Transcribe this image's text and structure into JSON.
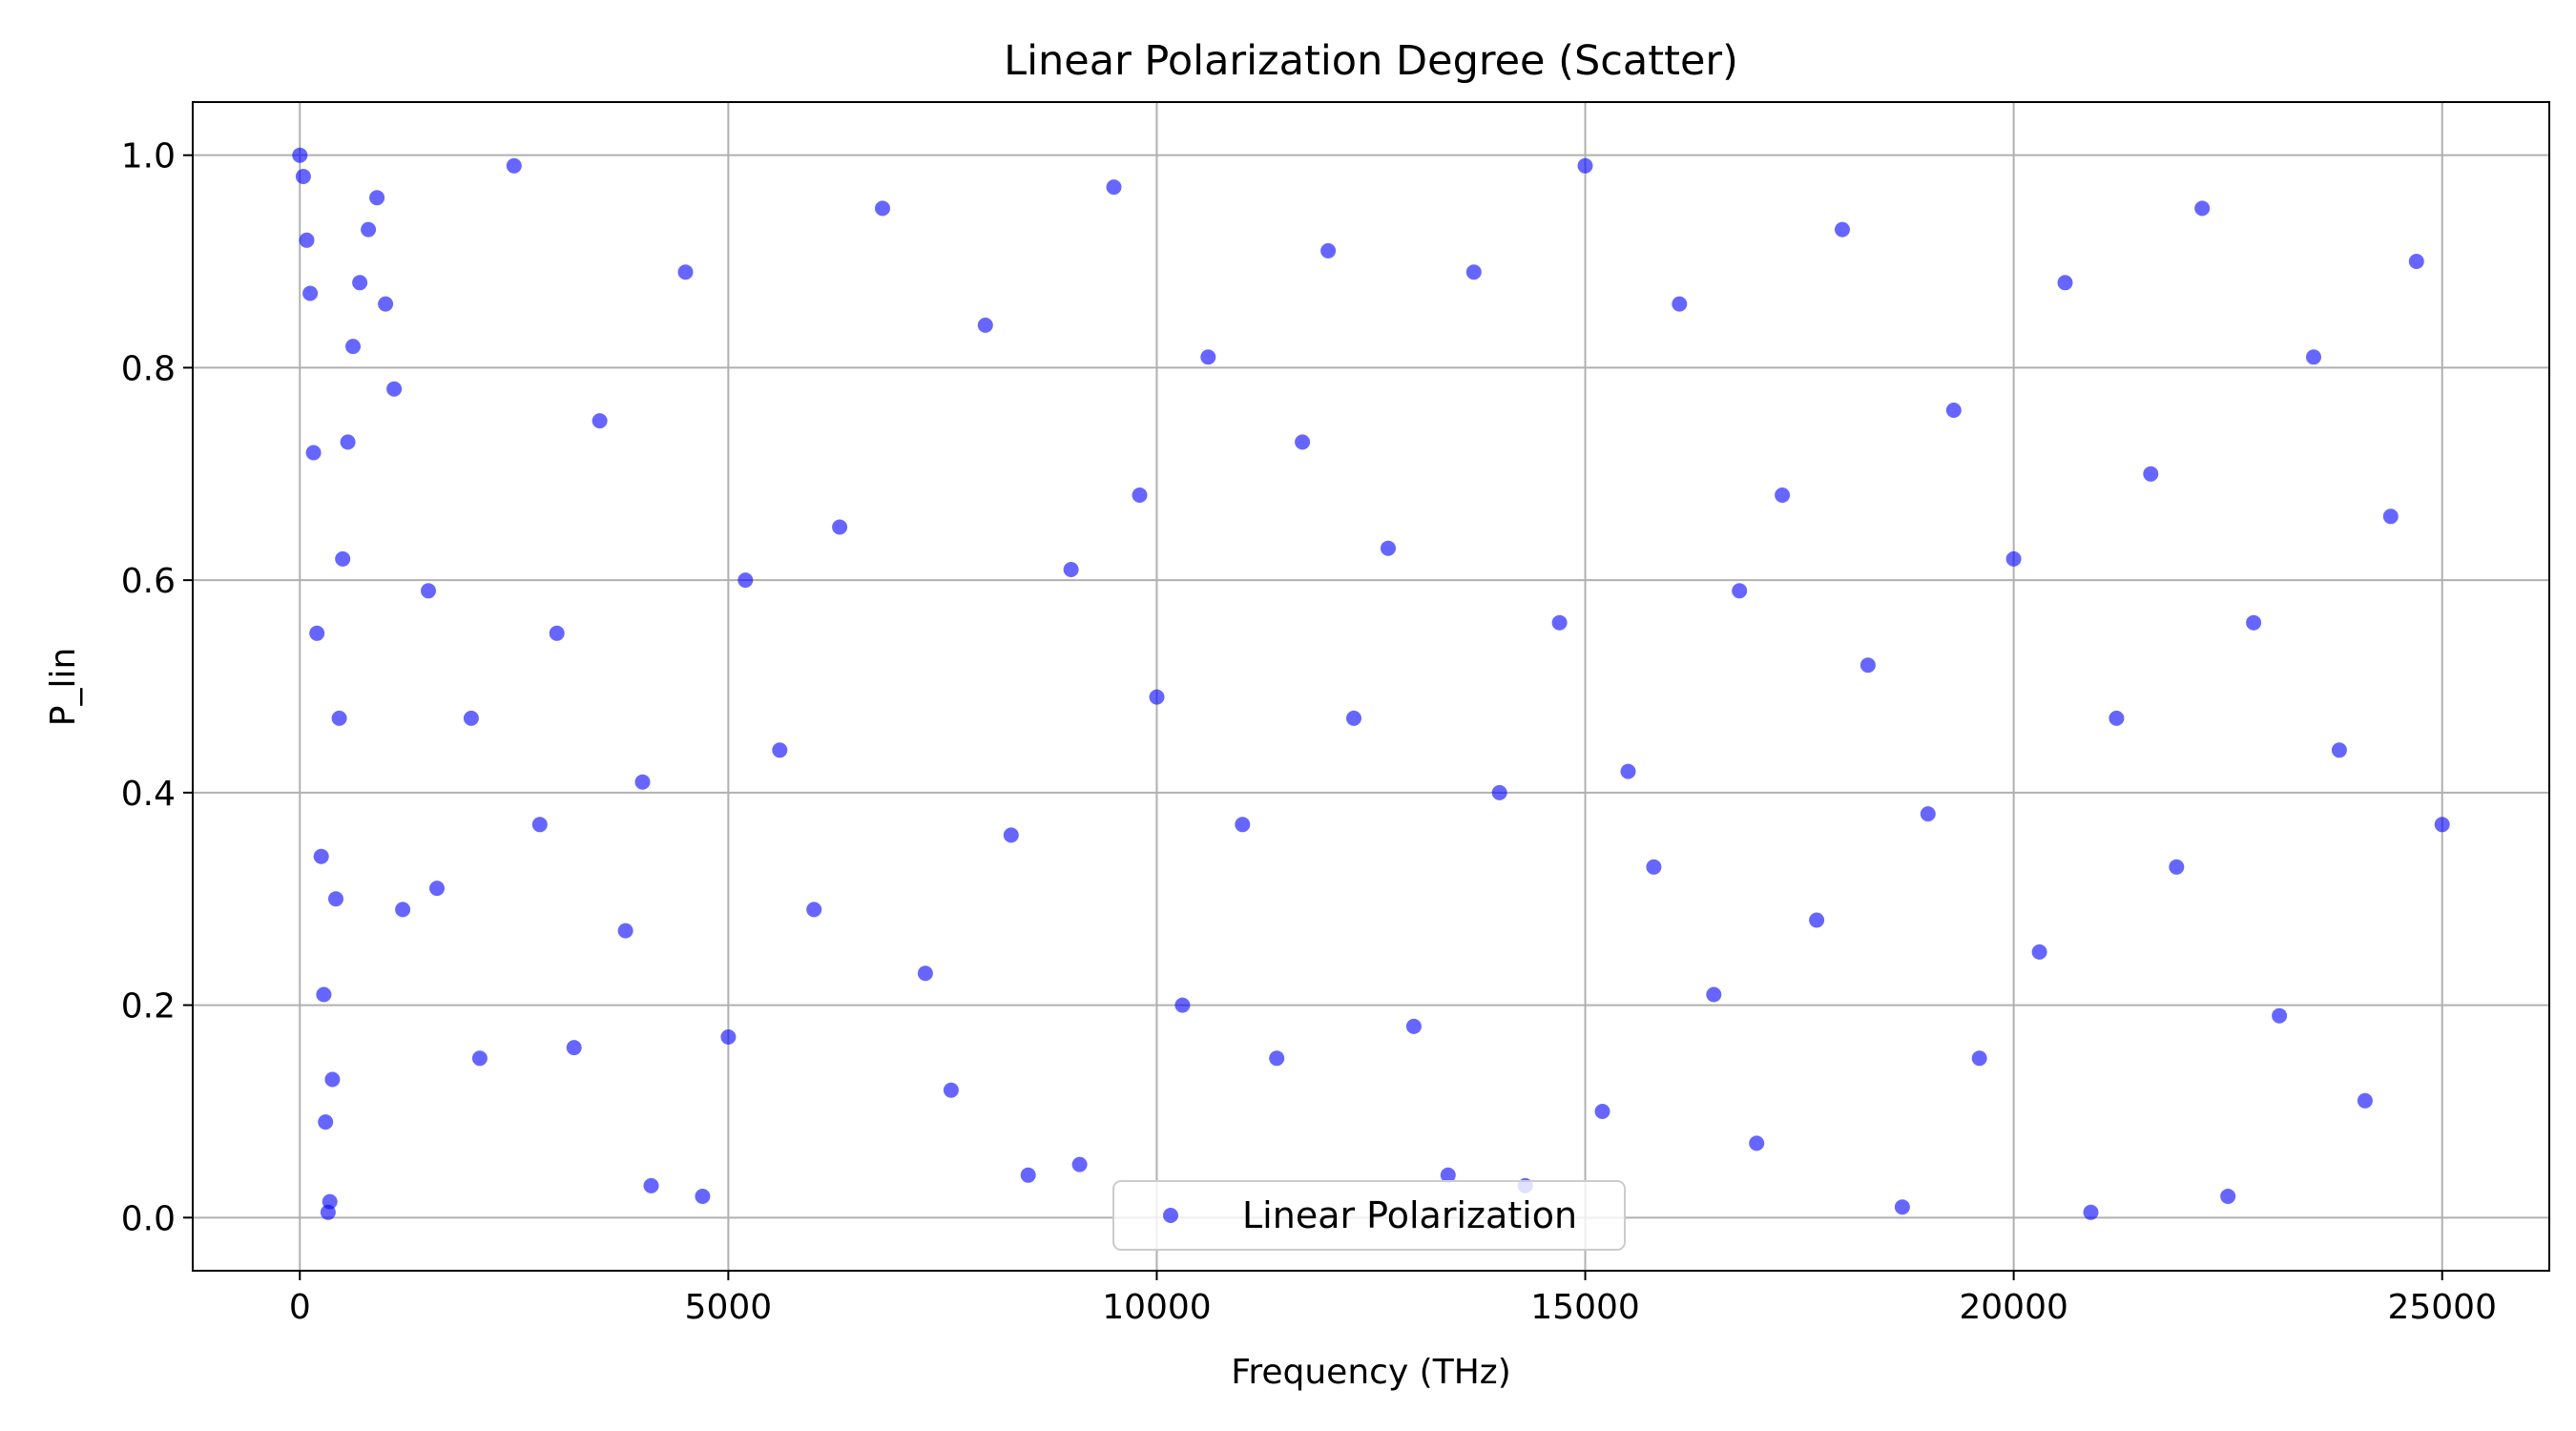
{
  "chart_data": {
    "type": "scatter",
    "title": "Linear Polarization Degree (Scatter)",
    "xlabel": "Frequency (THz)",
    "ylabel": "P_lin",
    "xlim": [
      -1250,
      26250
    ],
    "ylim": [
      -0.05,
      1.05
    ],
    "xticks": [
      0,
      5000,
      10000,
      15000,
      20000,
      25000
    ],
    "xtick_labels": [
      "0",
      "5000",
      "10000",
      "15000",
      "20000",
      "25000"
    ],
    "yticks": [
      0.0,
      0.2,
      0.4,
      0.6,
      0.8,
      1.0
    ],
    "ytick_labels": [
      "0.0",
      "0.2",
      "0.4",
      "0.6",
      "0.8",
      "1.0"
    ],
    "grid": true,
    "legend_position": "lower center",
    "series": [
      {
        "name": "Linear Polarization",
        "color": "#0000ff",
        "alpha": 0.6,
        "x_range": [
          0,
          25000
        ],
        "y_range": [
          0.0,
          1.0
        ],
        "points": [
          [
            0,
            1.0
          ],
          [
            40,
            0.98
          ],
          [
            80,
            0.92
          ],
          [
            120,
            0.87
          ],
          [
            160,
            0.72
          ],
          [
            200,
            0.55
          ],
          [
            250,
            0.34
          ],
          [
            280,
            0.21
          ],
          [
            300,
            0.09
          ],
          [
            330,
            0.005
          ],
          [
            350,
            0.015
          ],
          [
            380,
            0.13
          ],
          [
            420,
            0.3
          ],
          [
            460,
            0.47
          ],
          [
            500,
            0.62
          ],
          [
            560,
            0.73
          ],
          [
            620,
            0.82
          ],
          [
            700,
            0.88
          ],
          [
            800,
            0.93
          ],
          [
            900,
            0.96
          ],
          [
            1000,
            0.86
          ],
          [
            1100,
            0.78
          ],
          [
            1200,
            0.29
          ],
          [
            1500,
            0.59
          ],
          [
            1600,
            0.31
          ],
          [
            2000,
            0.47
          ],
          [
            2100,
            0.15
          ],
          [
            2500,
            0.99
          ],
          [
            2800,
            0.37
          ],
          [
            3000,
            0.55
          ],
          [
            3200,
            0.16
          ],
          [
            3500,
            0.75
          ],
          [
            3800,
            0.27
          ],
          [
            4000,
            0.41
          ],
          [
            4100,
            0.03
          ],
          [
            4500,
            0.89
          ],
          [
            4700,
            0.02
          ],
          [
            5000,
            0.17
          ],
          [
            5200,
            0.6
          ],
          [
            5600,
            0.44
          ],
          [
            6000,
            0.29
          ],
          [
            6300,
            0.65
          ],
          [
            6800,
            0.95
          ],
          [
            7300,
            0.23
          ],
          [
            7600,
            0.12
          ],
          [
            8000,
            0.84
          ],
          [
            8300,
            0.36
          ],
          [
            8500,
            0.04
          ],
          [
            9000,
            0.61
          ],
          [
            9100,
            0.05
          ],
          [
            9500,
            0.97
          ],
          [
            9800,
            0.68
          ],
          [
            10000,
            0.49
          ],
          [
            10300,
            0.2
          ],
          [
            10600,
            0.81
          ],
          [
            11000,
            0.37
          ],
          [
            11400,
            0.15
          ],
          [
            11700,
            0.73
          ],
          [
            12000,
            0.91
          ],
          [
            12300,
            0.47
          ],
          [
            12700,
            0.63
          ],
          [
            13000,
            0.18
          ],
          [
            13400,
            0.04
          ],
          [
            13700,
            0.89
          ],
          [
            14000,
            0.4
          ],
          [
            14300,
            0.03
          ],
          [
            14700,
            0.56
          ],
          [
            15000,
            0.99
          ],
          [
            15200,
            0.1
          ],
          [
            15500,
            0.42
          ],
          [
            15800,
            0.33
          ],
          [
            16100,
            0.86
          ],
          [
            16500,
            0.21
          ],
          [
            16800,
            0.59
          ],
          [
            17000,
            0.07
          ],
          [
            17300,
            0.68
          ],
          [
            17700,
            0.28
          ],
          [
            18000,
            0.93
          ],
          [
            18300,
            0.52
          ],
          [
            18700,
            0.01
          ],
          [
            19000,
            0.38
          ],
          [
            19300,
            0.76
          ],
          [
            19600,
            0.15
          ],
          [
            20000,
            0.62
          ],
          [
            20300,
            0.25
          ],
          [
            20600,
            0.88
          ],
          [
            20900,
            0.005
          ],
          [
            21200,
            0.47
          ],
          [
            21600,
            0.7
          ],
          [
            21900,
            0.33
          ],
          [
            22200,
            0.95
          ],
          [
            22500,
            0.02
          ],
          [
            22800,
            0.56
          ],
          [
            23100,
            0.19
          ],
          [
            23500,
            0.81
          ],
          [
            23800,
            0.44
          ],
          [
            24100,
            0.11
          ],
          [
            24400,
            0.66
          ],
          [
            24700,
            0.9
          ],
          [
            25000,
            0.37
          ]
        ]
      }
    ]
  }
}
